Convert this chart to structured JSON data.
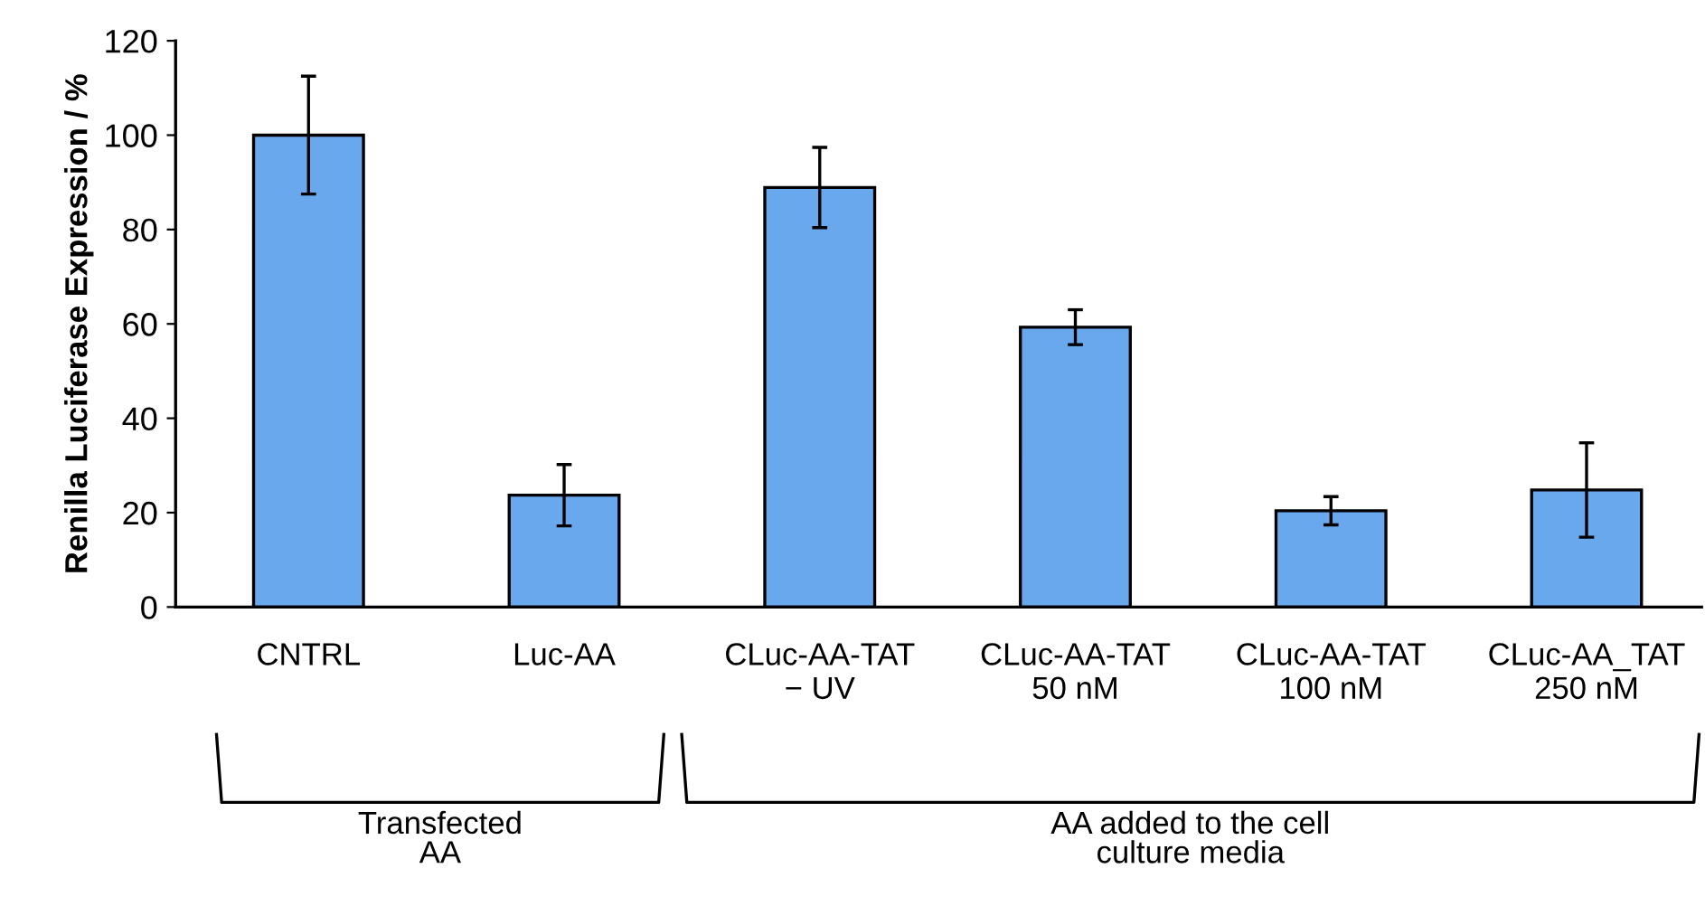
{
  "chart_data": {
    "type": "bar",
    "ylabel": "Renilla Luciferase Expression / %",
    "categories": [
      "CNTRL",
      "Luc-AA",
      "CLuc-AA-TAT\n− UV",
      "CLuc-AA-TAT\n50 nM",
      "CLuc-AA-TAT\n100 nM",
      "CLuc-AA_TAT\n250 nM"
    ],
    "values": [
      100,
      23.7,
      88.9,
      59.3,
      20.4,
      24.8
    ],
    "errors": [
      12.5,
      6.5,
      8.5,
      3.7,
      3,
      10
    ],
    "color": "#6aa8ee",
    "ylim": [
      0,
      120
    ],
    "yticks": [
      0,
      20,
      40,
      60,
      80,
      100,
      120
    ],
    "grid": false,
    "annotations": [
      "Transfected\nAA",
      "AA added to the cell\nculture media"
    ]
  }
}
